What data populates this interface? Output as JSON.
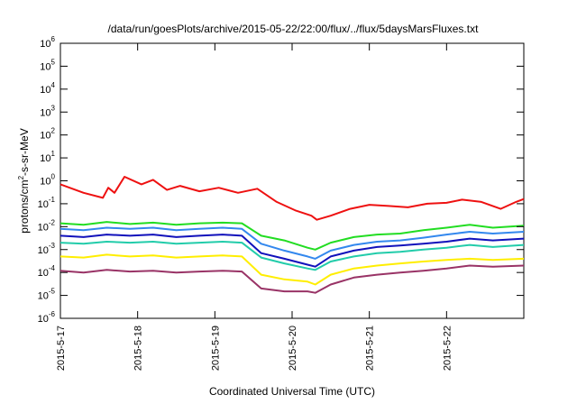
{
  "chart_data": {
    "type": "line",
    "title": "/data/run/goesPlots/archive/2015-05-22/22:00/flux/../flux/5daysMarsFluxes.txt",
    "xlabel": "Coordinated Universal Time (UTC)",
    "ylabel_parts": {
      "pre": "protons/cm",
      "sup": "2",
      "post": "-s-sr-MeV"
    },
    "yscale": "log",
    "ylim_exp": [
      -6,
      6
    ],
    "y_ticks": [
      {
        "base": "10",
        "exp": "6"
      },
      {
        "base": "10",
        "exp": "5"
      },
      {
        "base": "10",
        "exp": "4"
      },
      {
        "base": "10",
        "exp": "3"
      },
      {
        "base": "10",
        "exp": "2"
      },
      {
        "base": "10",
        "exp": "1"
      },
      {
        "base": "10",
        "exp": "0"
      },
      {
        "base": "10",
        "exp": "-1"
      },
      {
        "base": "10",
        "exp": "-2"
      },
      {
        "base": "10",
        "exp": "-3"
      },
      {
        "base": "10",
        "exp": "-4"
      },
      {
        "base": "10",
        "exp": "-5"
      },
      {
        "base": "10",
        "exp": "-6"
      }
    ],
    "xlim_days": [
      0,
      6
    ],
    "x_ticks": [
      "2015-5-17",
      "2015-5-18",
      "2015-5-19",
      "2015-5-20",
      "2015-5-21",
      "2015-5-22"
    ],
    "grid": false,
    "legend": "none",
    "series": [
      {
        "color": "#ee1111",
        "x": [
          0,
          0.3,
          0.55,
          0.62,
          0.7,
          0.83,
          1.05,
          1.2,
          1.38,
          1.55,
          1.8,
          2.05,
          2.3,
          2.55,
          2.8,
          3.05,
          3.25,
          3.32,
          3.5,
          3.75,
          4.0,
          4.25,
          4.5,
          4.75,
          5.0,
          5.2,
          5.45,
          5.7,
          5.9,
          6.0
        ],
        "y": [
          0.7,
          0.3,
          0.18,
          0.5,
          0.3,
          1.5,
          0.7,
          1.1,
          0.4,
          0.6,
          0.35,
          0.5,
          0.3,
          0.45,
          0.12,
          0.05,
          0.03,
          0.02,
          0.03,
          0.06,
          0.09,
          0.08,
          0.07,
          0.1,
          0.11,
          0.15,
          0.12,
          0.06,
          0.12,
          0.16
        ]
      },
      {
        "color": "#22dd22",
        "x": [
          0,
          0.3,
          0.6,
          0.9,
          1.2,
          1.5,
          1.8,
          2.1,
          2.35,
          2.6,
          2.9,
          3.2,
          3.3,
          3.5,
          3.8,
          4.1,
          4.4,
          4.7,
          5.0,
          5.3,
          5.6,
          6.0
        ],
        "y": [
          0.014,
          0.012,
          0.016,
          0.013,
          0.015,
          0.012,
          0.014,
          0.015,
          0.014,
          0.004,
          0.0025,
          0.0012,
          0.001,
          0.002,
          0.0035,
          0.0045,
          0.005,
          0.007,
          0.009,
          0.012,
          0.009,
          0.011
        ]
      },
      {
        "color": "#3388ee",
        "x": [
          0,
          0.3,
          0.6,
          0.9,
          1.2,
          1.5,
          1.8,
          2.1,
          2.35,
          2.6,
          2.9,
          3.2,
          3.3,
          3.5,
          3.8,
          4.1,
          4.4,
          4.7,
          5.0,
          5.3,
          5.6,
          6.0
        ],
        "y": [
          0.008,
          0.007,
          0.009,
          0.008,
          0.009,
          0.007,
          0.008,
          0.009,
          0.008,
          0.0018,
          0.0009,
          0.0005,
          0.0004,
          0.0009,
          0.0016,
          0.0022,
          0.0025,
          0.0033,
          0.0045,
          0.006,
          0.005,
          0.006
        ]
      },
      {
        "color": "#1111bb",
        "x": [
          0,
          0.3,
          0.6,
          0.9,
          1.2,
          1.5,
          1.8,
          2.1,
          2.35,
          2.6,
          2.9,
          3.2,
          3.3,
          3.5,
          3.8,
          4.1,
          4.4,
          4.7,
          5.0,
          5.3,
          5.6,
          6.0
        ],
        "y": [
          0.004,
          0.0035,
          0.0045,
          0.004,
          0.0045,
          0.0035,
          0.004,
          0.0045,
          0.004,
          0.0007,
          0.0004,
          0.00022,
          0.00018,
          0.0005,
          0.0009,
          0.0013,
          0.0015,
          0.0018,
          0.0022,
          0.003,
          0.0025,
          0.003
        ]
      },
      {
        "color": "#22ccaa",
        "x": [
          0,
          0.3,
          0.6,
          0.9,
          1.2,
          1.5,
          1.8,
          2.1,
          2.35,
          2.6,
          2.9,
          3.2,
          3.3,
          3.5,
          3.8,
          4.1,
          4.4,
          4.7,
          5.0,
          5.3,
          5.6,
          6.0
        ],
        "y": [
          0.002,
          0.0018,
          0.0022,
          0.002,
          0.0022,
          0.0018,
          0.002,
          0.0022,
          0.002,
          0.00045,
          0.00025,
          0.00015,
          0.00013,
          0.0003,
          0.0005,
          0.0007,
          0.0008,
          0.001,
          0.0012,
          0.0016,
          0.0013,
          0.0016
        ]
      },
      {
        "color": "#ffee00",
        "x": [
          0,
          0.3,
          0.6,
          0.9,
          1.2,
          1.5,
          1.8,
          2.1,
          2.35,
          2.6,
          2.9,
          3.2,
          3.3,
          3.5,
          3.8,
          4.1,
          4.4,
          4.7,
          5.0,
          5.3,
          5.6,
          6.0
        ],
        "y": [
          0.0005,
          0.00045,
          0.0006,
          0.0005,
          0.00055,
          0.00045,
          0.0005,
          0.00055,
          0.0005,
          8e-05,
          5e-05,
          4e-05,
          3e-05,
          8e-05,
          0.00015,
          0.0002,
          0.00025,
          0.0003,
          0.00035,
          0.0004,
          0.00035,
          0.0004
        ]
      },
      {
        "color": "#993366",
        "x": [
          0,
          0.3,
          0.6,
          0.9,
          1.2,
          1.5,
          1.8,
          2.1,
          2.35,
          2.6,
          2.9,
          3.2,
          3.3,
          3.5,
          3.8,
          4.1,
          4.4,
          4.7,
          5.0,
          5.3,
          5.6,
          6.0
        ],
        "y": [
          0.00012,
          0.0001,
          0.00013,
          0.00011,
          0.00012,
          0.0001,
          0.00011,
          0.00012,
          0.00011,
          2e-05,
          1.5e-05,
          1.5e-05,
          1.3e-05,
          3e-05,
          6e-05,
          8e-05,
          0.0001,
          0.00012,
          0.00015,
          0.0002,
          0.00018,
          0.0002
        ]
      }
    ]
  }
}
